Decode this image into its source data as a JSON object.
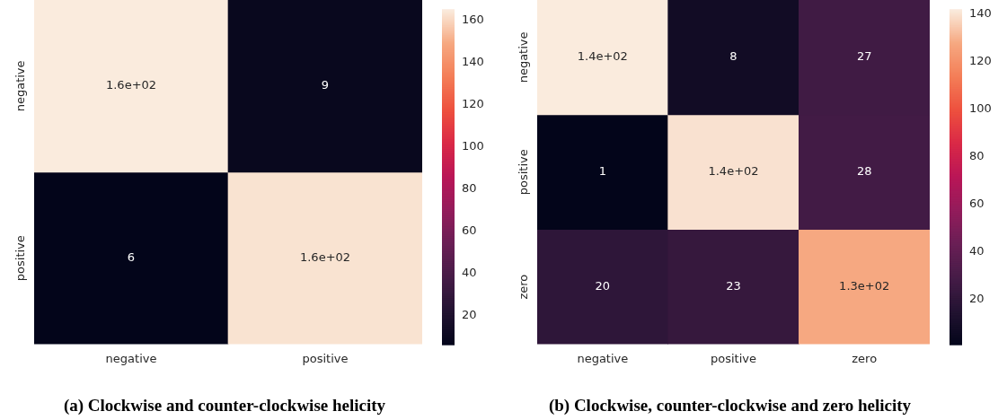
{
  "chart_data": [
    {
      "type": "heatmap",
      "title": "(a) Clockwise and counter-clockwise helicity",
      "categories": [
        "negative",
        "positive"
      ],
      "y_categories": [
        "negative",
        "positive"
      ],
      "cells": [
        [
          165,
          9
        ],
        [
          6,
          163
        ]
      ],
      "cell_labels": [
        [
          "1.6e+02",
          "9"
        ],
        [
          "6",
          "1.6e+02"
        ]
      ],
      "clim": [
        6,
        165
      ],
      "cticks": [
        20,
        40,
        60,
        80,
        100,
        120,
        140,
        160
      ]
    },
    {
      "type": "heatmap",
      "title": "(b) Clockwise, counter-clockwise and zero helicity",
      "categories": [
        "negative",
        "positive",
        "zero"
      ],
      "y_categories": [
        "negative",
        "positive",
        "zero"
      ],
      "cells": [
        [
          142,
          8,
          27
        ],
        [
          1,
          140,
          28
        ],
        [
          20,
          23,
          128
        ]
      ],
      "cell_labels": [
        [
          "1.4e+02",
          "8",
          "27"
        ],
        [
          "1",
          "1.4e+02",
          "28"
        ],
        [
          "20",
          "23",
          "1.3e+02"
        ]
      ],
      "clim": [
        1,
        142
      ],
      "cticks": [
        20,
        40,
        60,
        80,
        100,
        120,
        140
      ]
    }
  ]
}
